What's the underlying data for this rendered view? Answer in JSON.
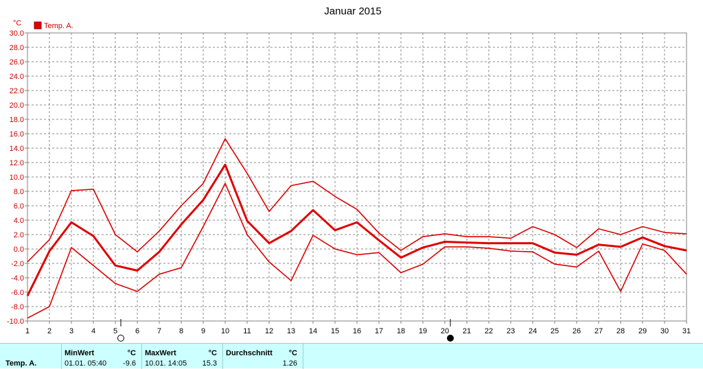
{
  "chart_data": {
    "type": "line",
    "title": "Januar 2015",
    "ylabel": "°C",
    "ylim": [
      -10,
      30
    ],
    "ytick_step": 2,
    "xlim": [
      1,
      31
    ],
    "x": [
      1,
      2,
      3,
      4,
      5,
      6,
      7,
      8,
      9,
      10,
      11,
      12,
      13,
      14,
      15,
      16,
      17,
      18,
      19,
      20,
      21,
      22,
      23,
      24,
      25,
      26,
      27,
      28,
      29,
      30,
      31
    ],
    "grid": true,
    "legend": "top-left",
    "legend_entries": [
      "Temp. A."
    ],
    "series": [
      {
        "name": "Temp. A.",
        "role": "max",
        "values": [
          -1.8,
          1.3,
          8.1,
          8.3,
          2.0,
          -0.4,
          2.5,
          6.0,
          9.1,
          15.3,
          10.5,
          5.2,
          8.8,
          9.4,
          7.3,
          5.5,
          2.2,
          -0.2,
          1.7,
          2.1,
          1.7,
          1.7,
          1.5,
          3.1,
          2.0,
          0.2,
          2.8,
          2.0,
          3.1,
          2.3,
          2.1
        ]
      },
      {
        "name": "Temp. A.",
        "role": "mean",
        "values": [
          -6.5,
          -0.3,
          3.7,
          1.8,
          -2.3,
          -3.0,
          -0.4,
          3.4,
          6.8,
          11.7,
          3.9,
          0.8,
          2.5,
          5.4,
          2.6,
          3.7,
          1.2,
          -1.2,
          0.2,
          1.0,
          0.9,
          0.8,
          0.8,
          0.8,
          -0.5,
          -0.8,
          0.6,
          0.3,
          1.6,
          0.4,
          -0.2
        ]
      },
      {
        "name": "Temp. A.",
        "role": "min",
        "values": [
          -9.6,
          -8.0,
          0.2,
          -2.3,
          -4.8,
          -5.9,
          -3.5,
          -2.6,
          3.1,
          9.1,
          2.0,
          -1.8,
          -4.4,
          1.9,
          0.0,
          -0.8,
          -0.5,
          -3.3,
          -2.1,
          0.3,
          0.3,
          0.1,
          -0.3,
          -0.4,
          -2.1,
          -2.5,
          -0.3,
          -5.9,
          0.7,
          -0.2,
          -3.5
        ]
      }
    ],
    "series_color": "#dd0000",
    "moon_phases": [
      {
        "day": 5,
        "phase": "full-moon"
      },
      {
        "day": 20,
        "phase": "new-moon"
      }
    ]
  },
  "stats": {
    "series_label": "Temp. A.",
    "min": {
      "header": "MinWert",
      "unit": "°C",
      "datetime": "01.01.  05:40",
      "value": "-9.6"
    },
    "max": {
      "header": "MaxWert",
      "unit": "°C",
      "datetime": "10.01.  14:05",
      "value": "15.3"
    },
    "avg": {
      "header": "Durchschnitt",
      "unit": "°C",
      "value": "1.26"
    }
  }
}
